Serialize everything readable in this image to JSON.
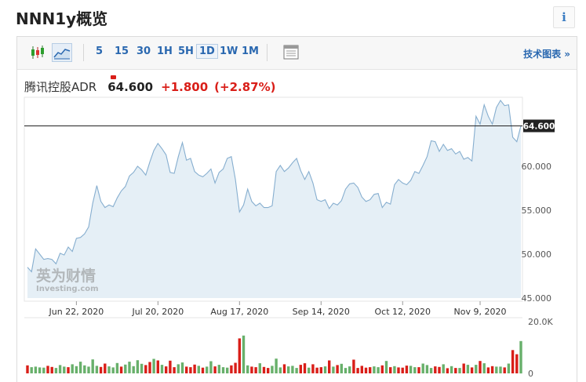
{
  "header": {
    "title": "NNN1y概览",
    "info_icon": "i"
  },
  "toolbar": {
    "icons": [
      "candlestick-icon",
      "area-chart-icon",
      "table-icon"
    ],
    "timeframes": [
      "5",
      "15",
      "30",
      "1H",
      "5H",
      "1D",
      "1W",
      "1M"
    ],
    "selected_timeframe": "1D",
    "tech_chart_label": "技术图表 »"
  },
  "quote": {
    "name": "腾讯控股ADR",
    "price": "64.600",
    "change": "+1.800",
    "change_pct": "(+2.87%)"
  },
  "colors": {
    "up": "#d91e18",
    "down": "#68b06b",
    "line": "#86aecf",
    "area": "#e5eff6",
    "link": "#2a68b0"
  },
  "watermark": {
    "brand": "英为财情",
    "sub": "Investing.com"
  },
  "chart_data": {
    "type": "area",
    "ylim": [
      45,
      67.5
    ],
    "yticks": [
      45,
      50,
      55,
      60
    ],
    "ytick_labels": [
      "45.000",
      "50.000",
      "55.000",
      "60.000"
    ],
    "last_price": 64.6,
    "last_price_label": "64.600",
    "xtick_labels": [
      "Jun 22, 2020",
      "Jul 20, 2020",
      "Aug 17, 2020",
      "Sep 14, 2020",
      "Oct 12, 2020",
      "Nov 9, 2020"
    ],
    "xtick_index": [
      12,
      32,
      52,
      72,
      92,
      111
    ],
    "series": [
      {
        "values": [
          48.5,
          48.0,
          50.6,
          50.0,
          49.4,
          49.5,
          49.4,
          48.9,
          50.1,
          49.9,
          50.8,
          50.3,
          51.8,
          51.9,
          52.3,
          53.1,
          55.8,
          57.8,
          56.0,
          55.3,
          55.6,
          55.4,
          56.4,
          57.2,
          57.7,
          58.9,
          59.3,
          60.0,
          59.6,
          59.0,
          60.5,
          61.8,
          62.6,
          62.0,
          61.3,
          59.3,
          59.2,
          61.1,
          62.7,
          60.7,
          60.9,
          59.4,
          59.0,
          58.8,
          59.2,
          59.7,
          58.1,
          59.3,
          59.7,
          60.9,
          61.1,
          58.5,
          54.8,
          55.6,
          57.4,
          56.0,
          55.5,
          55.8,
          55.3,
          55.3,
          55.5,
          59.4,
          60.1,
          59.4,
          59.8,
          60.4,
          60.9,
          59.5,
          58.5,
          59.4,
          58.1,
          56.2,
          56.0,
          56.2,
          55.2,
          55.8,
          55.6,
          56.1,
          57.4,
          58.0,
          58.1,
          57.6,
          56.5,
          56.0,
          56.2,
          56.8,
          56.9,
          55.3,
          55.9,
          55.7,
          57.9,
          58.5,
          58.1,
          57.9,
          58.4,
          59.4,
          59.2,
          60.1,
          61.1,
          62.9,
          62.8,
          61.7,
          62.5,
          61.8,
          62.0,
          61.4,
          61.7,
          60.8,
          61.0,
          60.6,
          65.7,
          64.8,
          67.0,
          65.7,
          64.8,
          66.7,
          67.5,
          66.9,
          67.0,
          63.3,
          62.8,
          64.6
        ]
      }
    ],
    "volume": {
      "ylim": [
        0,
        20000
      ],
      "ytick_labels": [
        "0",
        "20.0K"
      ],
      "values": [
        3100,
        2400,
        2600,
        2300,
        2200,
        2900,
        2500,
        2100,
        3200,
        2600,
        2400,
        3500,
        2800,
        4500,
        3100,
        2600,
        5400,
        2900,
        2500,
        3800,
        2700,
        2300,
        4000,
        2600,
        3400,
        4500,
        2800,
        5100,
        3700,
        3200,
        4400,
        5600,
        5000,
        3300,
        2700,
        4900,
        2400,
        3500,
        4200,
        2600,
        2400,
        3400,
        2900,
        2200,
        2600,
        4700,
        2700,
        3300,
        2400,
        2200,
        3100,
        4100,
        13500,
        14600,
        3100,
        2600,
        2400,
        3900,
        2500,
        2100,
        2900,
        5700,
        2300,
        3500,
        2700,
        2900,
        2100,
        3300,
        3900,
        2200,
        3500,
        2200,
        2400,
        2700,
        5000,
        2600,
        3200,
        3700,
        2100,
        2700,
        5300,
        2100,
        2900,
        2200,
        2400,
        2700,
        2400,
        3100,
        4800,
        2400,
        2800,
        2300,
        2200,
        3000,
        2900,
        2400,
        2400,
        3800,
        3200,
        2100,
        2700,
        2500,
        3500,
        2000,
        2800,
        2100,
        2100,
        3800,
        3300,
        2300,
        3300,
        4800,
        3900,
        2300,
        2800,
        2600,
        2600,
        2300,
        3800,
        9000,
        7400,
        12500
      ],
      "up": [
        false,
        true,
        true,
        true,
        true,
        false,
        false,
        true,
        true,
        true,
        false,
        true,
        true,
        true,
        true,
        true,
        true,
        true,
        false,
        false,
        true,
        true,
        true,
        false,
        true,
        true,
        true,
        true,
        true,
        false,
        false,
        true,
        false,
        true,
        false,
        false,
        false,
        true,
        true,
        false,
        false,
        false,
        true,
        false,
        true,
        true,
        false,
        true,
        true,
        true,
        false,
        false,
        false,
        true,
        true,
        false,
        false,
        true,
        false,
        false,
        true,
        true,
        true,
        false,
        true,
        true,
        true,
        false,
        false,
        true,
        false,
        false,
        false,
        true,
        false,
        true,
        false,
        true,
        true,
        true,
        false,
        false,
        false,
        false,
        false,
        true,
        true,
        false,
        true,
        false,
        true,
        false,
        false,
        false,
        true,
        true,
        false,
        true,
        true,
        true,
        false,
        false,
        true,
        false,
        true,
        false,
        true,
        false,
        true,
        false,
        true,
        false,
        true,
        false,
        false,
        true,
        true,
        false,
        true,
        false,
        false,
        true
      ]
    }
  }
}
